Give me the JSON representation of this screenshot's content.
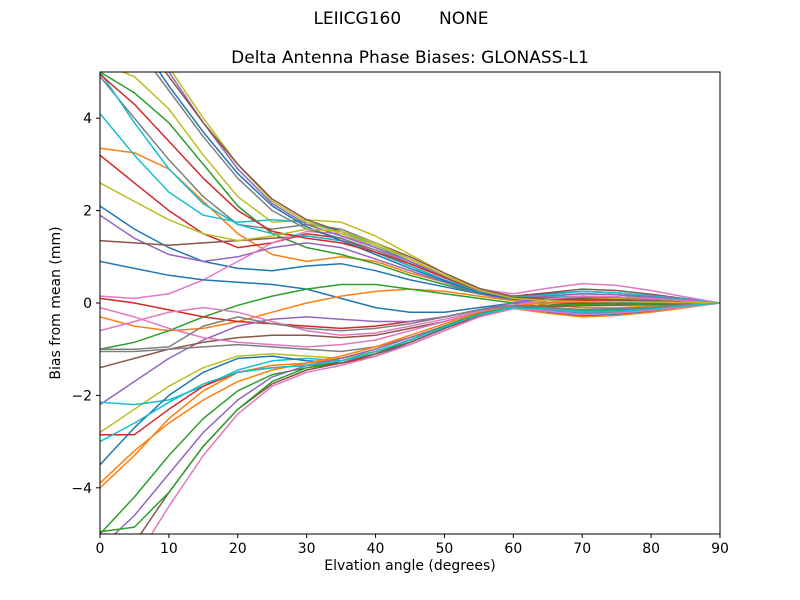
{
  "chart_data": {
    "type": "line",
    "suptitle": "LEIICG160       NONE",
    "title": "Delta Antenna Phase Biases: GLONASS-L1",
    "xlabel": "Elvation angle (degrees)",
    "ylabel": "Bias from mean (mm)",
    "xlim": [
      0,
      90
    ],
    "ylim": [
      -5,
      5
    ],
    "xticks": [
      0,
      10,
      20,
      30,
      40,
      50,
      60,
      70,
      80,
      90
    ],
    "yticks": [
      -4,
      -2,
      0,
      2,
      4
    ],
    "grid": false,
    "legend": "none",
    "line_width": 1.5,
    "axis_color": "#000000",
    "background_color": "#ffffff",
    "x": [
      0,
      5,
      10,
      15,
      20,
      25,
      30,
      35,
      40,
      45,
      50,
      55,
      60,
      65,
      70,
      75,
      80,
      85,
      90
    ],
    "series": [
      {
        "name": "line-01",
        "color": "#1f77b4",
        "values": [
          2.1,
          1.6,
          1.2,
          0.9,
          0.75,
          0.7,
          0.8,
          0.85,
          0.7,
          0.5,
          0.35,
          0.2,
          0.15,
          0.2,
          0.25,
          0.22,
          0.15,
          0.08,
          0
        ]
      },
      {
        "name": "line-02",
        "color": "#ff7f0e",
        "values": [
          3.35,
          3.25,
          2.9,
          2.2,
          1.5,
          1.05,
          0.9,
          1.0,
          0.9,
          0.65,
          0.45,
          0.25,
          0.1,
          0.1,
          0.15,
          0.13,
          0.1,
          0.05,
          0
        ]
      },
      {
        "name": "line-03",
        "color": "#2ca02c",
        "values": [
          5.0,
          4.55,
          3.9,
          3.0,
          2.1,
          1.5,
          1.2,
          1.05,
          0.85,
          0.6,
          0.4,
          0.2,
          0.1,
          0.15,
          0.2,
          0.18,
          0.12,
          0.06,
          0
        ]
      },
      {
        "name": "line-04",
        "color": "#d62728",
        "values": [
          3.2,
          2.6,
          2.0,
          1.5,
          1.2,
          1.3,
          1.5,
          1.4,
          1.1,
          0.8,
          0.5,
          0.25,
          0.12,
          0.1,
          0.12,
          0.1,
          0.08,
          0.04,
          0
        ]
      },
      {
        "name": "line-05",
        "color": "#9467bd",
        "values": [
          1.9,
          1.4,
          1.05,
          0.9,
          1.0,
          1.2,
          1.3,
          1.2,
          0.95,
          0.7,
          0.45,
          0.2,
          0.05,
          0.0,
          0.0,
          0.0,
          0.0,
          0.0,
          0
        ]
      },
      {
        "name": "line-06",
        "color": "#8c564b",
        "values": [
          1.35,
          1.3,
          1.25,
          1.3,
          1.35,
          1.4,
          1.45,
          1.35,
          1.1,
          0.8,
          0.5,
          0.25,
          0.15,
          0.22,
          0.3,
          0.27,
          0.19,
          0.09,
          0
        ]
      },
      {
        "name": "line-07",
        "color": "#e377c2",
        "values": [
          0.15,
          0.1,
          0.2,
          0.5,
          0.9,
          1.3,
          1.55,
          1.5,
          1.2,
          0.85,
          0.55,
          0.3,
          0.2,
          0.32,
          0.42,
          0.38,
          0.27,
          0.13,
          0
        ]
      },
      {
        "name": "line-08",
        "color": "#7f7f7f",
        "values": [
          4.9,
          4.0,
          3.1,
          2.3,
          1.7,
          1.6,
          1.7,
          1.6,
          1.3,
          0.95,
          0.6,
          0.3,
          0.15,
          0.12,
          0.1,
          0.08,
          0.06,
          0.03,
          0
        ]
      },
      {
        "name": "line-09",
        "color": "#bcbd22",
        "values": [
          5.2,
          4.9,
          4.2,
          3.2,
          2.3,
          1.75,
          1.8,
          1.75,
          1.45,
          1.05,
          0.65,
          0.3,
          0.1,
          0.05,
          0.02,
          0.02,
          0.02,
          0.01,
          0
        ]
      },
      {
        "name": "line-10",
        "color": "#17becf",
        "values": [
          4.1,
          3.2,
          2.4,
          1.9,
          1.75,
          1.8,
          1.75,
          1.55,
          1.25,
          0.9,
          0.55,
          0.25,
          0.1,
          0.12,
          0.15,
          0.13,
          0.1,
          0.05,
          0
        ]
      },
      {
        "name": "line-11",
        "color": "#1f77b4",
        "values": [
          0.9,
          0.75,
          0.6,
          0.5,
          0.45,
          0.4,
          0.3,
          0.1,
          -0.1,
          -0.2,
          -0.2,
          -0.1,
          0.0,
          0.05,
          0.1,
          0.1,
          0.08,
          0.04,
          0
        ]
      },
      {
        "name": "line-12",
        "color": "#ff7f0e",
        "values": [
          -0.3,
          -0.5,
          -0.6,
          -0.55,
          -0.4,
          -0.2,
          0.0,
          0.15,
          0.25,
          0.3,
          0.25,
          0.15,
          0.05,
          -0.05,
          -0.1,
          -0.1,
          -0.07,
          -0.03,
          0
        ]
      },
      {
        "name": "line-13",
        "color": "#2ca02c",
        "values": [
          -1.0,
          -0.85,
          -0.6,
          -0.3,
          -0.05,
          0.15,
          0.3,
          0.4,
          0.4,
          0.3,
          0.2,
          0.1,
          0.0,
          -0.1,
          -0.15,
          -0.13,
          -0.1,
          -0.05,
          0
        ]
      },
      {
        "name": "line-14",
        "color": "#d62728",
        "values": [
          0.1,
          0.0,
          -0.15,
          -0.3,
          -0.4,
          -0.45,
          -0.5,
          -0.55,
          -0.5,
          -0.4,
          -0.3,
          -0.15,
          -0.05,
          0.0,
          0.05,
          0.05,
          0.04,
          0.02,
          0
        ]
      },
      {
        "name": "line-15",
        "color": "#9467bd",
        "values": [
          -2.2,
          -1.7,
          -1.2,
          -0.8,
          -0.5,
          -0.35,
          -0.3,
          -0.35,
          -0.4,
          -0.4,
          -0.3,
          -0.15,
          0.0,
          0.1,
          0.15,
          0.13,
          0.1,
          0.05,
          0
        ]
      },
      {
        "name": "line-16",
        "color": "#8c564b",
        "values": [
          -1.4,
          -1.2,
          -1.0,
          -0.85,
          -0.75,
          -0.7,
          -0.7,
          -0.75,
          -0.7,
          -0.55,
          -0.4,
          -0.2,
          -0.05,
          0.05,
          0.1,
          0.1,
          0.07,
          0.03,
          0
        ]
      },
      {
        "name": "line-17",
        "color": "#e377c2",
        "values": [
          -0.1,
          -0.3,
          -0.55,
          -0.75,
          -0.85,
          -0.9,
          -0.95,
          -0.9,
          -0.8,
          -0.6,
          -0.4,
          -0.2,
          -0.1,
          -0.15,
          -0.2,
          -0.18,
          -0.13,
          -0.06,
          0
        ]
      },
      {
        "name": "line-18",
        "color": "#7f7f7f",
        "values": [
          -1.05,
          -1.05,
          -1.0,
          -0.95,
          -0.9,
          -0.95,
          -1.0,
          -1.05,
          -0.95,
          -0.75,
          -0.5,
          -0.25,
          -0.1,
          -0.05,
          -0.02,
          -0.02,
          -0.01,
          -0.01,
          0
        ]
      },
      {
        "name": "line-19",
        "color": "#bcbd22",
        "values": [
          -2.8,
          -2.3,
          -1.8,
          -1.4,
          -1.15,
          -1.1,
          -1.15,
          -1.2,
          -1.05,
          -0.8,
          -0.5,
          -0.22,
          -0.05,
          0.05,
          0.1,
          0.09,
          0.06,
          0.03,
          0
        ]
      },
      {
        "name": "line-20",
        "color": "#17becf",
        "values": [
          -2.15,
          -2.2,
          -2.1,
          -1.8,
          -1.45,
          -1.25,
          -1.2,
          -1.25,
          -1.1,
          -0.85,
          -0.55,
          -0.25,
          -0.08,
          -0.12,
          -0.18,
          -0.16,
          -0.12,
          -0.06,
          0
        ]
      },
      {
        "name": "line-21",
        "color": "#1f77b4",
        "values": [
          -3.5,
          -2.7,
          -2.0,
          -1.5,
          -1.2,
          -1.15,
          -1.25,
          -1.3,
          -1.15,
          -0.85,
          -0.55,
          -0.25,
          -0.1,
          -0.2,
          -0.28,
          -0.25,
          -0.18,
          -0.09,
          0
        ]
      },
      {
        "name": "line-22",
        "color": "#ff7f0e",
        "values": [
          -4.0,
          -3.3,
          -2.5,
          -1.9,
          -1.5,
          -1.35,
          -1.3,
          -1.2,
          -1.0,
          -0.75,
          -0.5,
          -0.25,
          -0.12,
          -0.22,
          -0.3,
          -0.27,
          -0.2,
          -0.1,
          0
        ]
      },
      {
        "name": "line-23",
        "color": "#2ca02c",
        "values": [
          -5.0,
          -4.2,
          -3.3,
          -2.5,
          -1.9,
          -1.55,
          -1.4,
          -1.3,
          -1.1,
          -0.8,
          -0.5,
          -0.22,
          -0.05,
          -0.1,
          -0.15,
          -0.14,
          -0.1,
          -0.05,
          0
        ]
      },
      {
        "name": "line-24",
        "color": "#d62728",
        "values": [
          -2.85,
          -2.85,
          -2.3,
          -1.8,
          -1.5,
          -1.4,
          -1.35,
          -1.3,
          -1.15,
          -0.9,
          -0.6,
          -0.3,
          -0.12,
          -0.05,
          0.0,
          0.0,
          0.0,
          0.0,
          0
        ]
      },
      {
        "name": "line-25",
        "color": "#9467bd",
        "values": [
          -5.3,
          -4.6,
          -3.7,
          -2.8,
          -2.1,
          -1.6,
          -1.35,
          -1.2,
          -1.0,
          -0.75,
          -0.5,
          -0.25,
          -0.1,
          -0.15,
          -0.22,
          -0.2,
          -0.15,
          -0.07,
          0
        ]
      },
      {
        "name": "line-26",
        "color": "#8c564b",
        "values": [
          -6.2,
          -5.2,
          -4.1,
          -3.1,
          -2.3,
          -1.75,
          -1.45,
          -1.3,
          -1.1,
          -0.85,
          -0.55,
          -0.28,
          -0.1,
          -0.08,
          -0.06,
          -0.05,
          -0.04,
          -0.02,
          0
        ]
      },
      {
        "name": "line-27",
        "color": "#e377c2",
        "values": [
          -6.8,
          -5.6,
          -4.4,
          -3.3,
          -2.4,
          -1.8,
          -1.5,
          -1.35,
          -1.15,
          -0.9,
          -0.6,
          -0.3,
          -0.12,
          -0.18,
          -0.25,
          -0.22,
          -0.16,
          -0.08,
          0
        ]
      },
      {
        "name": "line-28",
        "color": "#7f7f7f",
        "values": [
          6.5,
          5.6,
          4.6,
          3.6,
          2.7,
          2.0,
          1.6,
          1.4,
          1.15,
          0.85,
          0.55,
          0.28,
          0.12,
          0.1,
          0.08,
          0.07,
          0.05,
          0.02,
          0
        ]
      },
      {
        "name": "line-29",
        "color": "#bcbd22",
        "values": [
          7.2,
          6.2,
          5.1,
          4.0,
          3.0,
          2.2,
          1.75,
          1.5,
          1.25,
          0.95,
          0.6,
          0.3,
          0.12,
          0.06,
          0.03,
          0.02,
          0.02,
          0.01,
          0
        ]
      },
      {
        "name": "line-30",
        "color": "#17becf",
        "values": [
          5.0,
          3.9,
          2.9,
          2.15,
          1.7,
          1.5,
          1.45,
          1.35,
          1.1,
          0.8,
          0.5,
          0.25,
          0.1,
          0.18,
          0.25,
          0.22,
          0.16,
          0.08,
          0
        ]
      },
      {
        "name": "line-31",
        "color": "#1f77b4",
        "values": [
          6.9,
          5.8,
          4.7,
          3.7,
          2.8,
          2.1,
          1.65,
          1.35,
          1.05,
          0.75,
          0.48,
          0.22,
          0.08,
          0.05,
          0.03,
          0.02,
          0.01,
          0.01,
          0
        ]
      },
      {
        "name": "line-32",
        "color": "#ff7f0e",
        "values": [
          -3.9,
          -3.2,
          -2.6,
          -2.1,
          -1.7,
          -1.45,
          -1.3,
          -1.15,
          -0.95,
          -0.7,
          -0.45,
          -0.2,
          -0.05,
          0.0,
          0.05,
          0.05,
          0.03,
          0.02,
          0
        ]
      },
      {
        "name": "line-33",
        "color": "#2ca02c",
        "values": [
          -4.95,
          -4.85,
          -4.1,
          -3.1,
          -2.3,
          -1.7,
          -1.4,
          -1.25,
          -1.05,
          -0.8,
          -0.5,
          -0.25,
          -0.1,
          -0.05,
          -0.03,
          -0.02,
          -0.02,
          -0.01,
          0
        ]
      },
      {
        "name": "line-34",
        "color": "#d62728",
        "values": [
          4.95,
          4.3,
          3.5,
          2.7,
          2.0,
          1.55,
          1.4,
          1.3,
          1.1,
          0.85,
          0.55,
          0.27,
          0.1,
          0.08,
          0.06,
          0.05,
          0.03,
          0.02,
          0
        ]
      },
      {
        "name": "line-35",
        "color": "#9467bd",
        "values": [
          7.0,
          6.1,
          5.0,
          3.9,
          2.9,
          2.15,
          1.7,
          1.45,
          1.2,
          0.9,
          0.58,
          0.28,
          0.1,
          0.15,
          0.2,
          0.18,
          0.13,
          0.06,
          0
        ]
      },
      {
        "name": "line-36",
        "color": "#8c564b",
        "values": [
          6.8,
          5.9,
          4.9,
          3.9,
          3.0,
          2.25,
          1.8,
          1.55,
          1.3,
          1.0,
          0.65,
          0.32,
          0.12,
          0.1,
          0.09,
          0.07,
          0.05,
          0.02,
          0
        ]
      },
      {
        "name": "line-37",
        "color": "#e377c2",
        "values": [
          -0.6,
          -0.4,
          -0.2,
          -0.1,
          -0.2,
          -0.4,
          -0.6,
          -0.7,
          -0.65,
          -0.5,
          -0.35,
          -0.18,
          -0.05,
          0.08,
          0.15,
          0.13,
          0.1,
          0.05,
          0
        ]
      },
      {
        "name": "line-38",
        "color": "#7f7f7f",
        "values": [
          -1.0,
          -1.0,
          -0.95,
          -0.5,
          -0.3,
          -0.45,
          -0.55,
          -0.6,
          -0.55,
          -0.45,
          -0.3,
          -0.15,
          -0.05,
          -0.1,
          -0.14,
          -0.12,
          -0.09,
          -0.04,
          0
        ]
      },
      {
        "name": "line-39",
        "color": "#bcbd22",
        "values": [
          2.6,
          2.2,
          1.8,
          1.5,
          1.35,
          1.45,
          1.6,
          1.55,
          1.3,
          0.95,
          0.6,
          0.28,
          0.1,
          0.05,
          0.03,
          0.03,
          0.02,
          0.01,
          0
        ]
      },
      {
        "name": "line-40",
        "color": "#17becf",
        "values": [
          -3.0,
          -2.6,
          -2.15,
          -1.75,
          -1.5,
          -1.4,
          -1.35,
          -1.25,
          -1.05,
          -0.8,
          -0.52,
          -0.25,
          -0.1,
          -0.14,
          -0.2,
          -0.18,
          -0.13,
          -0.06,
          0
        ]
      }
    ]
  }
}
